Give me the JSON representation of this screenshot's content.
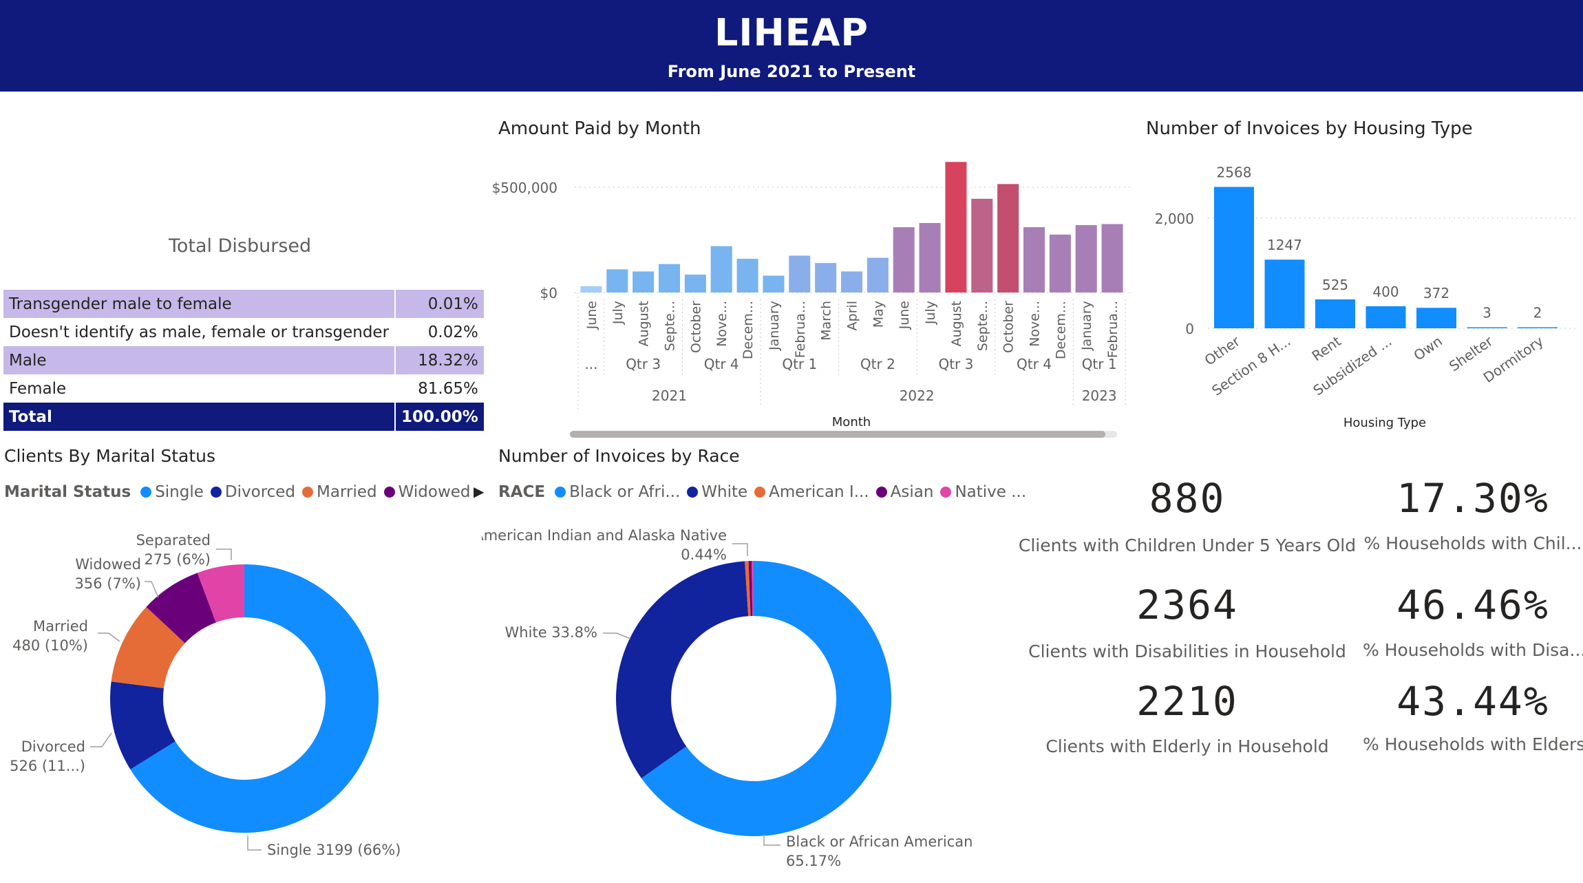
{
  "header": {
    "title": "LIHEAP",
    "subtitle": "From June 2021 to Present"
  },
  "gender_card": {
    "title": "Total Disbursed",
    "rows": [
      {
        "label": "Transgender male to female",
        "value": "0.01%"
      },
      {
        "label": "Doesn't identify as male, female or transgender",
        "value": "0.02%"
      },
      {
        "label": "Male",
        "value": "18.32%"
      },
      {
        "label": "Female",
        "value": "81.65%"
      }
    ],
    "total": {
      "label": "Total",
      "value": "100.00%"
    }
  },
  "amount_paid": {
    "title": "Amount Paid by Month",
    "xlabel": "Month",
    "y_ticks": [
      "$500,000",
      "$0"
    ],
    "months": [
      "June",
      "July",
      "August",
      "Septe...",
      "October",
      "Nove...",
      "Decem...",
      "January",
      "Februa...",
      "March",
      "April",
      "May",
      "June",
      "July",
      "August",
      "Septe...",
      "October",
      "Nove...",
      "Decem...",
      "January",
      "Februa..."
    ],
    "quarters": [
      {
        "label": "...",
        "span": 1
      },
      {
        "label": "Qtr 3",
        "span": 3
      },
      {
        "label": "Qtr 4",
        "span": 3
      },
      {
        "label": "Qtr 1",
        "span": 3
      },
      {
        "label": "Qtr 2",
        "span": 3
      },
      {
        "label": "Qtr 3",
        "span": 3
      },
      {
        "label": "Qtr 4",
        "span": 3
      },
      {
        "label": "Qtr 1",
        "span": 2
      }
    ],
    "years": [
      {
        "label": "2021",
        "span": 7
      },
      {
        "label": "2022",
        "span": 12
      },
      {
        "label": "2023",
        "span": 2
      }
    ]
  },
  "housing": {
    "title": "Number of Invoices by Housing Type",
    "xlabel": "Housing Type",
    "y_ticks": [
      "2,000",
      "0"
    ]
  },
  "marital": {
    "title": "Clients By Marital Status",
    "legend_title": "Marital Status",
    "legend": [
      {
        "name": "Single",
        "color": "#118dff"
      },
      {
        "name": "Divorced",
        "color": "#12239e"
      },
      {
        "name": "Married",
        "color": "#e66c37"
      },
      {
        "name": "Widowed",
        "color": "#6b007b"
      }
    ],
    "more_icon": "chevron-right-icon",
    "labels": {
      "separated_name": "Separated",
      "separated_val": "275 (6%)",
      "widowed_name": "Widowed",
      "widowed_val": "356 (7%)",
      "married_name": "Married",
      "married_val": "480 (10%)",
      "divorced_name": "Divorced",
      "divorced_val": "526 (11...)",
      "single": "Single 3199 (66%)"
    }
  },
  "race": {
    "title": "Number of Invoices by Race",
    "legend_title": "RACE",
    "legend": [
      {
        "name": "Black or Afri...",
        "color": "#118dff"
      },
      {
        "name": "White",
        "color": "#12239e"
      },
      {
        "name": "American I...",
        "color": "#e66c37"
      },
      {
        "name": "Asian",
        "color": "#6b007b"
      },
      {
        "name": "Native ...",
        "color": "#e044a7"
      }
    ],
    "labels": {
      "amind_name": "American Indian and Alaska Native",
      "amind_val": "0.44%",
      "white": "White 33.8%",
      "black_name": "Black or African American",
      "black_val": "65.17%"
    }
  },
  "kpis": [
    {
      "value": "880",
      "label": "Clients with Children Under 5 Years Old"
    },
    {
      "value": "17.30%",
      "label": "% Households with Chil..."
    },
    {
      "value": "2364",
      "label": "Clients with Disabilities in Household"
    },
    {
      "value": "46.46%",
      "label": "% Households with Disa..."
    },
    {
      "value": "2210",
      "label": "Clients with Elderly in Household"
    },
    {
      "value": "43.44%",
      "label": "% Households with Elders"
    }
  ],
  "chart_data": [
    {
      "type": "bar",
      "title": "Amount Paid by Month",
      "xlabel": "Month",
      "ylabel": "",
      "categories": [
        "June",
        "July",
        "August",
        "Septe...",
        "October",
        "Nove...",
        "Decem...",
        "January",
        "Februa...",
        "March",
        "April",
        "May",
        "June",
        "July",
        "August",
        "Septe...",
        "October",
        "Nove...",
        "Decem...",
        "January",
        "Februa..."
      ],
      "values": [
        30000,
        110000,
        100000,
        135000,
        85000,
        220000,
        160000,
        80000,
        175000,
        140000,
        100000,
        165000,
        310000,
        330000,
        620000,
        445000,
        515000,
        310000,
        275000,
        320000,
        325000
      ],
      "colors": [
        "#a3cdfa",
        "#77b4f0",
        "#77b4f0",
        "#77b4f0",
        "#77b4f0",
        "#77b4f0",
        "#77b4f0",
        "#77b4f0",
        "#8aaeea",
        "#8aaeea",
        "#8aaeea",
        "#8aaeea",
        "#a77fb6",
        "#a77fb6",
        "#d7435c",
        "#bd6288",
        "#c34e6f",
        "#a77fb6",
        "#a77fb6",
        "#a77fb6",
        "#a77fb6"
      ],
      "ylim": [
        0,
        620000
      ],
      "grid": true
    },
    {
      "type": "bar",
      "title": "Number of Invoices by Housing Type",
      "xlabel": "Housing Type",
      "categories": [
        "Other",
        "Section 8 H...",
        "Rent",
        "Subsidized ...",
        "Own",
        "Shelter",
        "Dormitory"
      ],
      "values": [
        2568,
        1247,
        525,
        400,
        372,
        3,
        2
      ],
      "color": "#118dff",
      "ylim": [
        0,
        2568
      ],
      "grid": true
    },
    {
      "type": "pie",
      "title": "Clients By Marital Status",
      "categories": [
        "Single",
        "Divorced",
        "Married",
        "Widowed",
        "Separated"
      ],
      "values": [
        3199,
        526,
        480,
        356,
        275
      ],
      "colors": [
        "#118dff",
        "#12239e",
        "#e66c37",
        "#6b007b",
        "#e044a7"
      ]
    },
    {
      "type": "pie",
      "title": "Number of Invoices by Race",
      "categories": [
        "Black or African American",
        "White",
        "American Indian and Alaska Native",
        "Asian",
        "Native ..."
      ],
      "values": [
        65.17,
        33.8,
        0.44,
        0.35,
        0.24
      ],
      "colors": [
        "#118dff",
        "#12239e",
        "#e66c37",
        "#6b007b",
        "#e044a7"
      ]
    }
  ]
}
